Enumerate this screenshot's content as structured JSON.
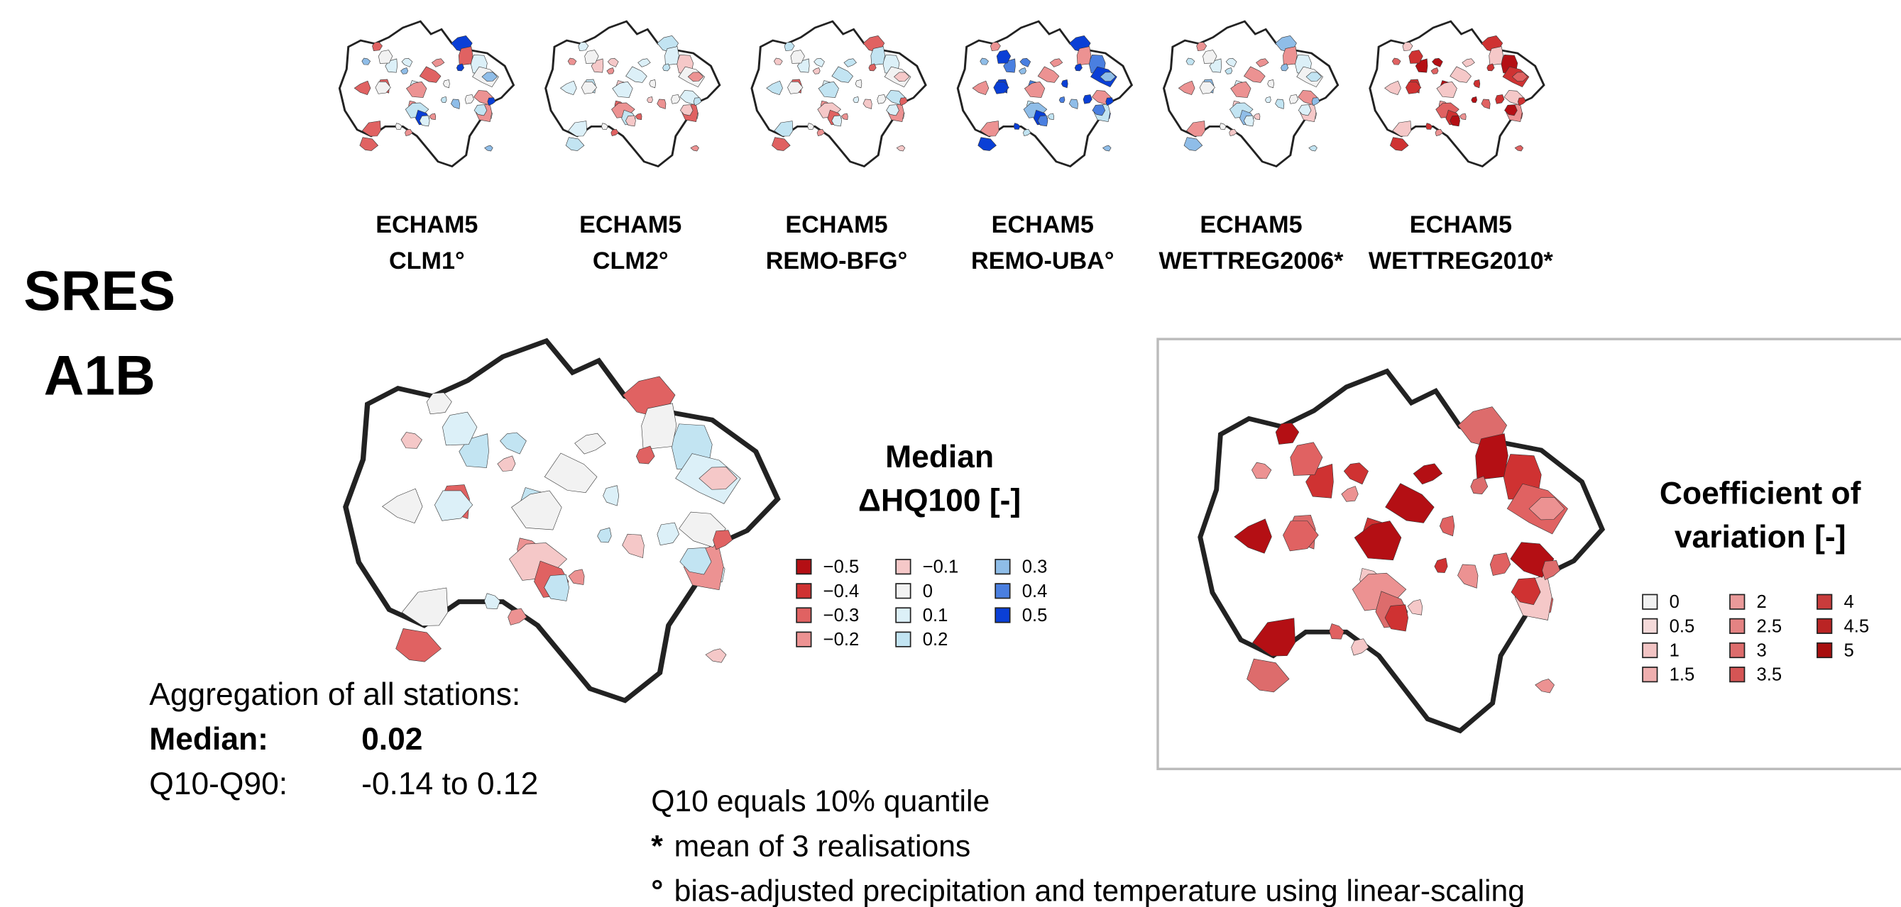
{
  "models": [
    {
      "line1": "ECHAM5",
      "line2": "CLM1°"
    },
    {
      "line1": "ECHAM5",
      "line2": "CLM2°"
    },
    {
      "line1": "ECHAM5",
      "line2": "REMO-BFG°"
    },
    {
      "line1": "ECHAM5",
      "line2": "REMO-UBA°"
    },
    {
      "line1": "ECHAM5",
      "line2": "WETTREG2006*"
    },
    {
      "line1": "ECHAM5",
      "line2": "WETTREG2010*"
    }
  ],
  "scenario": [
    "SRES",
    "A1B"
  ],
  "median_legend": {
    "title": [
      "Median",
      "ΔHQ100 [-]"
    ],
    "items": [
      {
        "label": "−0.5",
        "color": "#b40f14"
      },
      {
        "label": "−0.4",
        "color": "#cf3232"
      },
      {
        "label": "−0.3",
        "color": "#e06262"
      },
      {
        "label": "−0.2",
        "color": "#ec9292"
      },
      {
        "label": "−0.1",
        "color": "#f5c8c8"
      },
      {
        "label": "0",
        "color": "#f2f2f2"
      },
      {
        "label": "0.1",
        "color": "#dcf0f8"
      },
      {
        "label": "0.2",
        "color": "#c2e4f2"
      },
      {
        "label": "0.3",
        "color": "#8fbde8"
      },
      {
        "label": "0.4",
        "color": "#4a7fe0"
      },
      {
        "label": "0.5",
        "color": "#0a3fd6"
      }
    ]
  },
  "cv_legend": {
    "title": [
      "Coefficient of",
      "variation [-]"
    ],
    "items": [
      {
        "label": "0",
        "color": "#f2f2f2"
      },
      {
        "label": "0.5",
        "color": "#f5dada"
      },
      {
        "label": "1",
        "color": "#f2c4c4"
      },
      {
        "label": "1.5",
        "color": "#efafaf"
      },
      {
        "label": "2",
        "color": "#ea9a9a"
      },
      {
        "label": "2.5",
        "color": "#e48383"
      },
      {
        "label": "3",
        "color": "#dd6c6c"
      },
      {
        "label": "3.5",
        "color": "#d55555"
      },
      {
        "label": "4",
        "color": "#c83c3c"
      },
      {
        "label": "4.5",
        "color": "#ba2424"
      },
      {
        "label": "5",
        "color": "#a80e0e"
      }
    ]
  },
  "aggregation": {
    "heading": "Aggregation of all stations:",
    "rows": [
      [
        "Median:",
        "0.02"
      ],
      [
        "Q10-Q90:",
        "-0.14 to 0.12"
      ]
    ]
  },
  "notes": [
    {
      "text": "Q10 equals 10% quantile"
    },
    {
      "marker": "*",
      "text": "mean of 3 realisations"
    },
    {
      "marker": "°",
      "text": "bias-adjusted precipitation and temperature using linear-scaling"
    }
  ]
}
